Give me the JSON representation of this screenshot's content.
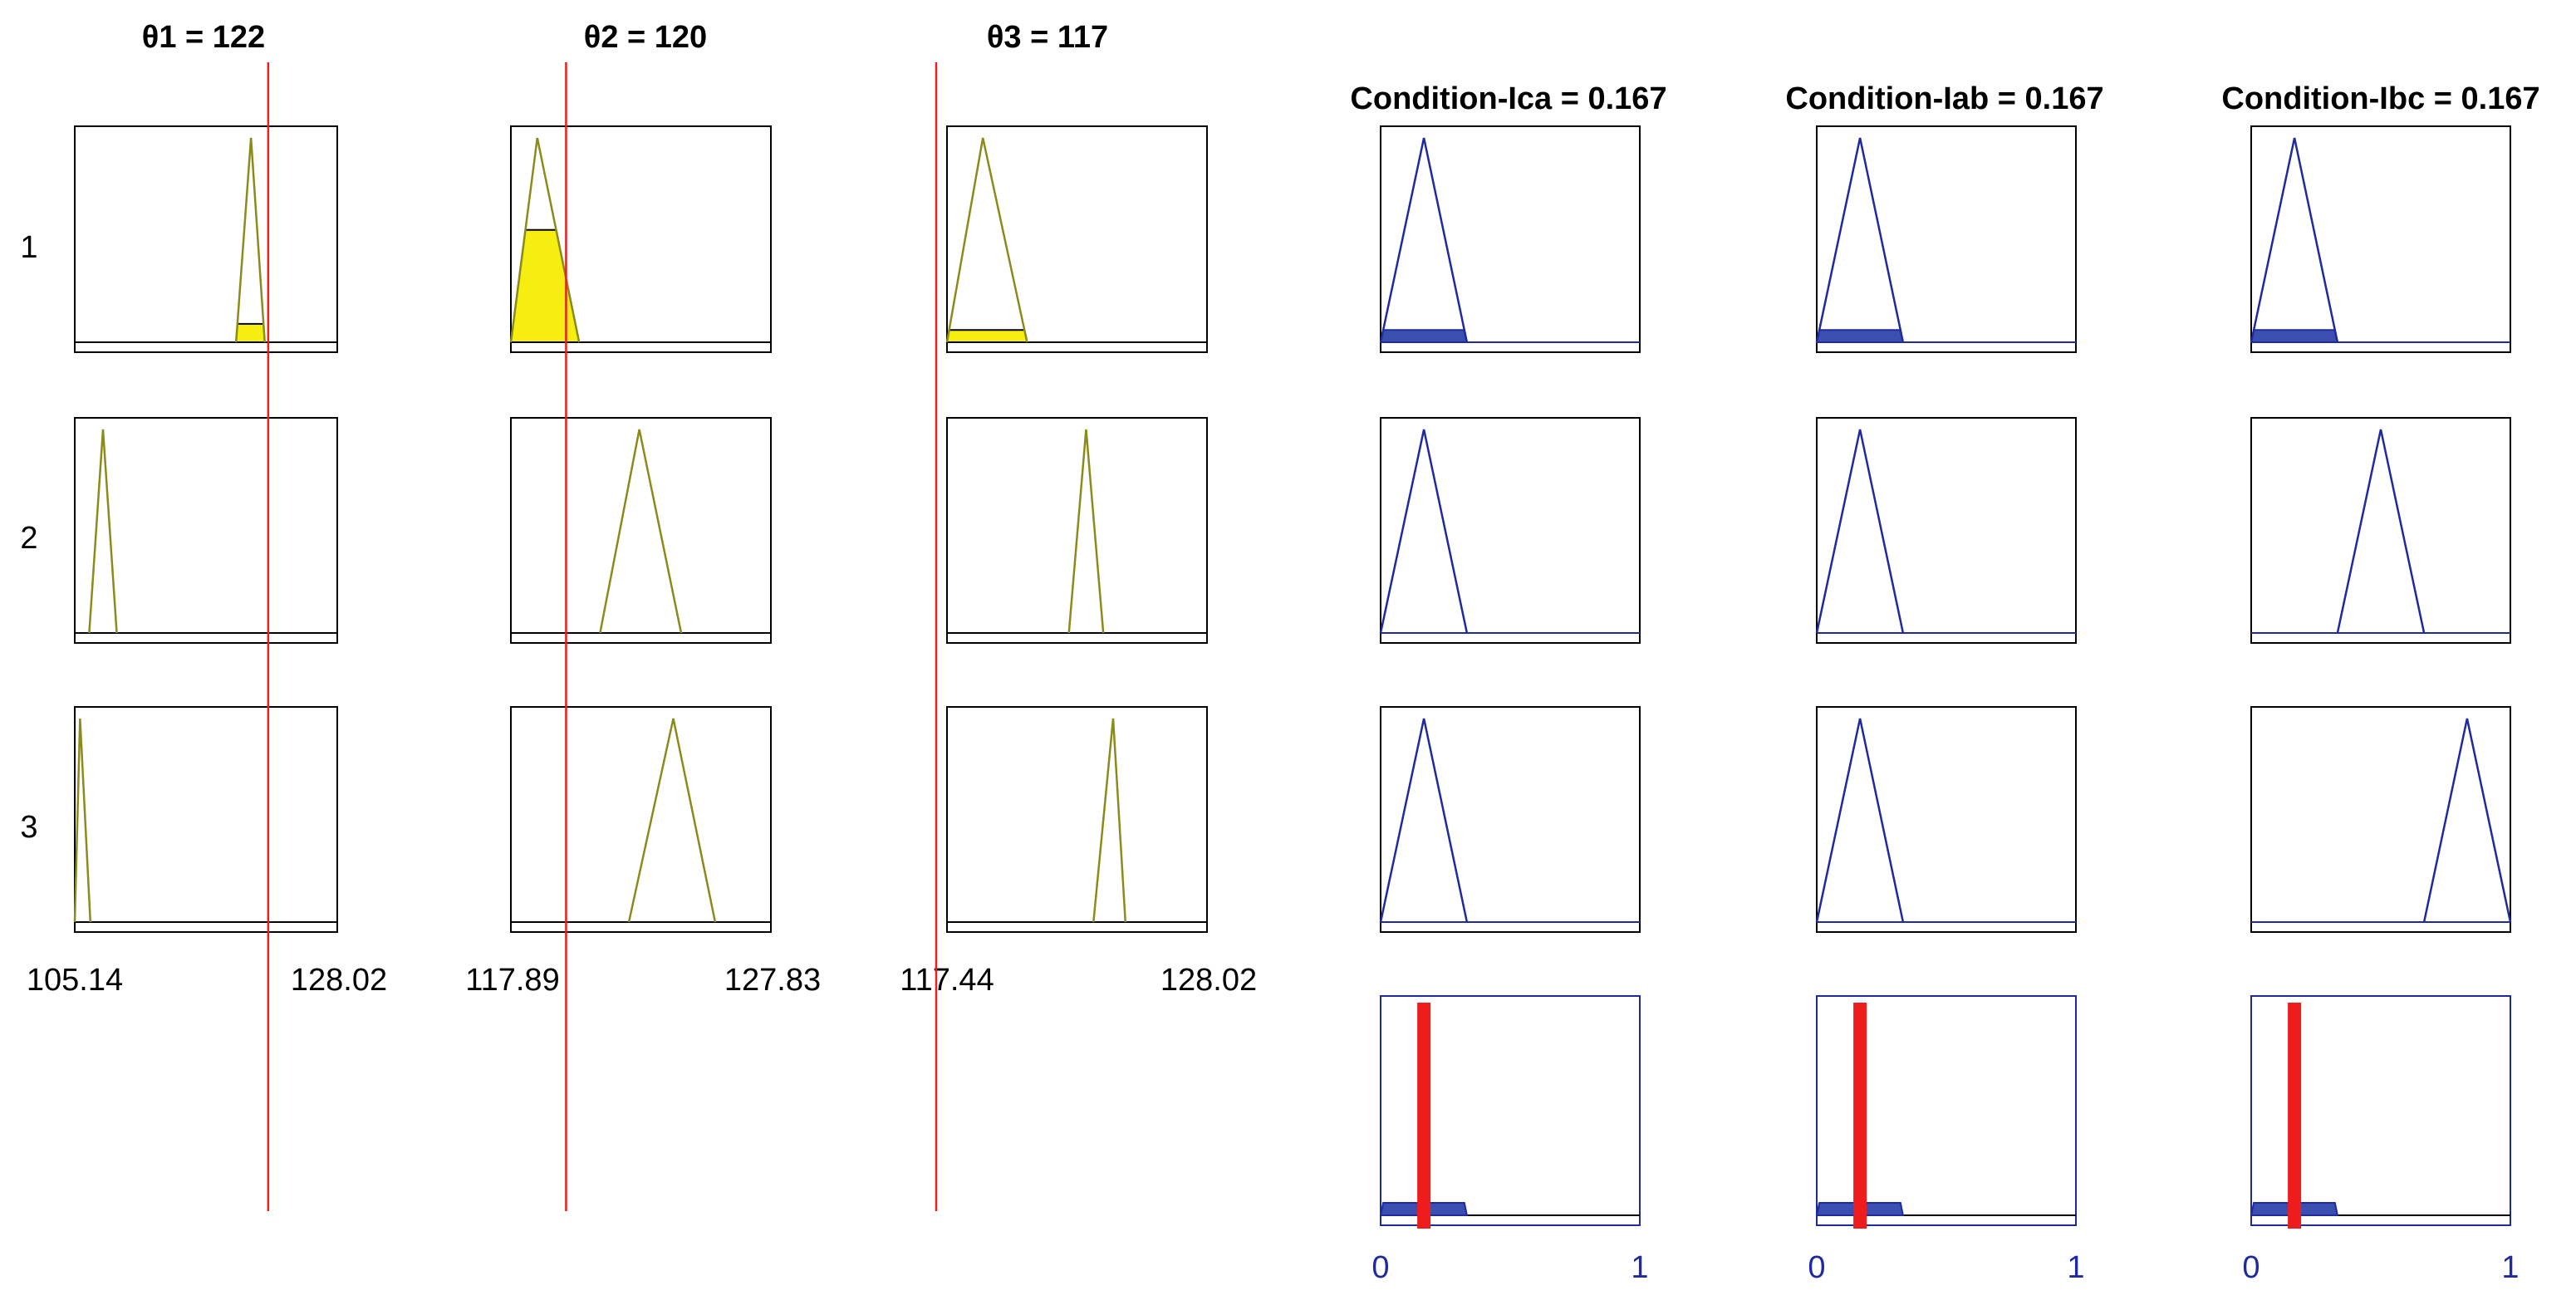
{
  "inputs": [
    {
      "title": "θ1 = 122",
      "value": 122,
      "range": [
        105.14,
        128.02
      ],
      "range_min_label": "105.14",
      "range_max_label": "128.02",
      "mfs": [
        [
          119.2,
          120.5,
          121.7
        ],
        [
          106.4,
          107.6,
          108.8
        ],
        [
          105.14,
          105.6,
          106.5
        ]
      ],
      "firing": [
        0.09,
        0,
        0
      ]
    },
    {
      "title": "θ2 = 120",
      "value": 120,
      "range": [
        117.89,
        127.83
      ],
      "range_min_label": "117.89",
      "range_max_label": "127.83",
      "mfs": [
        [
          117.89,
          118.9,
          120.5
        ],
        [
          121.3,
          122.8,
          124.4
        ],
        [
          122.4,
          124.1,
          125.7
        ]
      ],
      "firing": [
        0.55,
        0,
        0
      ]
    },
    {
      "title": "θ3 = 117",
      "value": 117,
      "range": [
        117.44,
        128.02
      ],
      "range_min_label": "117.44",
      "range_max_label": "128.02",
      "mfs": [
        [
          117.44,
          118.9,
          120.7
        ],
        [
          122.4,
          123.1,
          123.8
        ],
        [
          123.4,
          124.2,
          124.7
        ]
      ],
      "firing": [
        0.06,
        0,
        0
      ]
    }
  ],
  "outputs": [
    {
      "title": "Condition-Ica = 0.167",
      "value": 0.167,
      "range": [
        0,
        1
      ],
      "range_min_label": "0",
      "range_max_label": "1",
      "mfs": [
        [
          0,
          0.167,
          0.333
        ],
        [
          0,
          0.167,
          0.333
        ],
        [
          0,
          0.167,
          0.333
        ]
      ],
      "rule_firing": [
        0.06,
        0,
        0
      ]
    },
    {
      "title": "Condition-Iab = 0.167",
      "value": 0.167,
      "range": [
        0,
        1
      ],
      "range_min_label": "0",
      "range_max_label": "1",
      "mfs": [
        [
          0,
          0.167,
          0.333
        ],
        [
          0,
          0.167,
          0.333
        ],
        [
          0,
          0.167,
          0.333
        ]
      ],
      "rule_firing": [
        0.06,
        0,
        0
      ]
    },
    {
      "title": "Condition-Ibc = 0.167",
      "value": 0.167,
      "range": [
        0,
        1
      ],
      "range_min_label": "0",
      "range_max_label": "1",
      "mfs": [
        [
          0,
          0.167,
          0.333
        ],
        [
          0.333,
          0.5,
          0.667
        ],
        [
          0.667,
          0.833,
          1.0
        ]
      ],
      "rule_firing": [
        0.06,
        0,
        0
      ]
    }
  ],
  "rules": [
    "1",
    "2",
    "3"
  ],
  "colors": {
    "input_mf": "#8b8b1c",
    "input_fire": "#f5ee10",
    "output_mf": "#1f2a9e",
    "output_fire": "#3a4fb0",
    "cursor": "#e8201e"
  }
}
